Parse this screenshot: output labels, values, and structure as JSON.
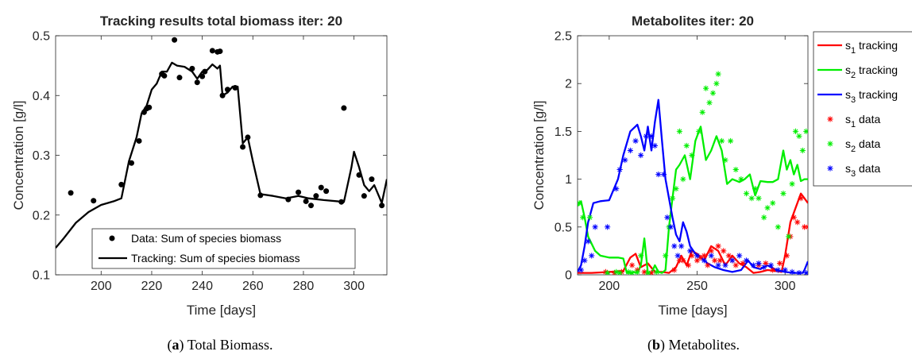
{
  "chart_data": [
    {
      "type": "line",
      "title": "Tracking results total biomass iter: 20",
      "xlabel": "Time [days]",
      "ylabel": "Concentration [g/l]",
      "xlim": [
        182,
        313
      ],
      "ylim": [
        0.1,
        0.5
      ],
      "xticks": [
        200,
        220,
        240,
        260,
        280,
        300
      ],
      "yticks": [
        0.1,
        0.2,
        0.3,
        0.4,
        0.5
      ],
      "xtick_labels": [
        "200",
        "220",
        "240",
        "260",
        "280",
        "300"
      ],
      "ytick_labels": [
        "0.1",
        "0.2",
        "0.3",
        "0.4",
        "0.5"
      ],
      "grid": false,
      "legend": "bottom-center",
      "series": [
        {
          "name": "Data: Sum of species biomass",
          "kind": "scatter",
          "color": "#000000",
          "x": [
            188,
            197,
            208,
            212,
            215,
            217,
            218,
            219,
            224,
            225,
            229,
            231,
            236,
            238,
            240,
            241,
            244,
            246,
            247,
            248,
            250,
            253,
            256,
            258,
            263,
            274,
            278,
            281,
            283,
            285,
            287,
            289,
            295,
            296,
            302,
            304,
            307,
            311
          ],
          "y": [
            0.237,
            0.224,
            0.251,
            0.287,
            0.324,
            0.372,
            0.378,
            0.38,
            0.436,
            0.433,
            0.493,
            0.43,
            0.445,
            0.422,
            0.432,
            0.44,
            0.475,
            0.473,
            0.474,
            0.4,
            0.41,
            0.413,
            0.314,
            0.33,
            0.233,
            0.226,
            0.238,
            0.223,
            0.216,
            0.232,
            0.246,
            0.24,
            0.222,
            0.379,
            0.267,
            0.232,
            0.26,
            0.216
          ]
        },
        {
          "name": "Tracking: Sum of species biomass",
          "kind": "line",
          "color": "#000000",
          "x": [
            182,
            185,
            190,
            195,
            200,
            205,
            208,
            211,
            214,
            216,
            218,
            220,
            222,
            224,
            226,
            228,
            230,
            233,
            236,
            238,
            240,
            242,
            244,
            246,
            247,
            248,
            250,
            252,
            254,
            256,
            258,
            260,
            263,
            268,
            273,
            278,
            282,
            288,
            296,
            299,
            300,
            302,
            304,
            306,
            308,
            310,
            311,
            313
          ],
          "y": [
            0.145,
            0.16,
            0.187,
            0.205,
            0.217,
            0.223,
            0.228,
            0.29,
            0.33,
            0.37,
            0.383,
            0.41,
            0.42,
            0.44,
            0.44,
            0.455,
            0.45,
            0.448,
            0.44,
            0.428,
            0.44,
            0.443,
            0.452,
            0.445,
            0.45,
            0.4,
            0.405,
            0.415,
            0.415,
            0.32,
            0.33,
            0.29,
            0.235,
            0.232,
            0.228,
            0.232,
            0.228,
            0.225,
            0.222,
            0.28,
            0.306,
            0.28,
            0.25,
            0.24,
            0.25,
            0.23,
            0.22,
            0.26
          ]
        }
      ]
    },
    {
      "type": "line",
      "title": "Metabolites iter: 20",
      "xlabel": "Time [days]",
      "ylabel": "Concentration [g/l]",
      "xlim": [
        182,
        313
      ],
      "ylim": [
        0,
        2.5
      ],
      "xticks": [
        200,
        250,
        300
      ],
      "yticks": [
        0,
        0.5,
        1,
        1.5,
        2,
        2.5
      ],
      "xtick_labels": [
        "200",
        "250",
        "300"
      ],
      "ytick_labels": [
        "0",
        "0.5",
        "1",
        "1.5",
        "2",
        "2.5"
      ],
      "grid": false,
      "legend": "top-right",
      "series": [
        {
          "name_main": "s",
          "name_sub": "1",
          "name_suffix": " tracking",
          "kind": "line",
          "color": "#ff0000",
          "x": [
            182,
            190,
            200,
            208,
            212,
            215,
            218,
            222,
            226,
            230,
            234,
            238,
            241,
            244,
            247,
            250,
            254,
            258,
            262,
            266,
            270,
            274,
            278,
            282,
            286,
            290,
            295,
            298,
            300,
            303,
            306,
            309,
            311,
            313
          ],
          "y": [
            0.02,
            0.02,
            0.03,
            0.04,
            0.18,
            0.22,
            0.08,
            0.12,
            0.03,
            0.03,
            0.02,
            0.08,
            0.2,
            0.1,
            0.25,
            0.22,
            0.15,
            0.3,
            0.25,
            0.1,
            0.2,
            0.12,
            0.08,
            0.02,
            0.03,
            0.05,
            0.04,
            0.03,
            0.2,
            0.55,
            0.7,
            0.85,
            0.8,
            0.75
          ]
        },
        {
          "name_main": "s",
          "name_sub": "2",
          "name_suffix": " tracking",
          "kind": "line",
          "color": "#00ee00",
          "x": [
            182,
            184,
            186,
            188,
            192,
            195,
            200,
            205,
            208,
            210,
            212,
            214,
            216,
            218,
            220,
            222,
            224,
            226,
            228,
            230,
            232,
            234,
            236,
            238,
            240,
            243,
            246,
            249,
            252,
            255,
            258,
            261,
            264,
            267,
            270,
            274,
            277,
            280,
            283,
            286,
            290,
            293,
            296,
            299,
            301,
            303,
            305,
            307,
            309,
            311,
            313
          ],
          "y": [
            0.72,
            0.77,
            0.6,
            0.4,
            0.25,
            0.2,
            0.18,
            0.18,
            0.17,
            0.02,
            0.02,
            0.03,
            0.02,
            0.1,
            0.38,
            0.02,
            0.02,
            0.1,
            0.03,
            0.02,
            0.05,
            0.5,
            0.8,
            1.1,
            1.15,
            1.25,
            1.0,
            1.4,
            1.55,
            1.2,
            1.3,
            1.45,
            1.3,
            0.95,
            1.0,
            0.97,
            1.0,
            1.05,
            0.83,
            0.98,
            0.97,
            0.97,
            1.0,
            1.3,
            1.1,
            1.2,
            1.05,
            1.15,
            0.98,
            1.0,
            1.0
          ]
        },
        {
          "name_main": "s",
          "name_sub": "3",
          "name_suffix": " tracking",
          "kind": "line",
          "color": "#0000ff",
          "x": [
            182,
            184,
            186,
            188,
            191,
            195,
            200,
            205,
            208,
            212,
            216,
            218,
            220,
            222,
            224,
            226,
            228,
            230,
            232,
            234,
            236,
            238,
            240,
            242,
            244,
            246,
            249,
            252,
            256,
            260,
            265,
            270,
            275,
            279,
            282,
            286,
            290,
            295,
            300,
            305,
            310,
            311,
            313
          ],
          "y": [
            0.03,
            0.1,
            0.3,
            0.55,
            0.75,
            0.77,
            0.78,
            1.0,
            1.25,
            1.5,
            1.57,
            1.45,
            1.3,
            1.55,
            1.3,
            1.6,
            1.83,
            1.4,
            1.0,
            0.8,
            0.6,
            0.42,
            0.35,
            0.55,
            0.45,
            0.3,
            0.22,
            0.18,
            0.12,
            0.08,
            0.05,
            0.03,
            0.05,
            0.15,
            0.08,
            0.06,
            0.1,
            0.05,
            0.03,
            0.02,
            0.02,
            0.05,
            0.14
          ]
        },
        {
          "name_main": "s",
          "name_sub": "1",
          "name_suffix": " data",
          "kind": "scatter",
          "color": "#ff0000",
          "x": [
            198,
            203,
            207,
            213,
            216,
            220,
            224,
            237,
            240,
            242,
            245,
            247,
            250,
            252,
            254,
            256,
            258,
            260,
            262,
            263,
            265,
            268,
            270,
            272,
            276,
            285,
            289,
            293,
            297,
            301,
            303,
            305,
            307,
            309,
            311,
            313
          ],
          "y": [
            0.03,
            0.02,
            0.03,
            0.1,
            0.05,
            0.03,
            0.02,
            0.05,
            0.15,
            0.15,
            0.1,
            0.2,
            0.15,
            0.18,
            0.2,
            0.1,
            0.25,
            0.15,
            0.3,
            0.15,
            0.25,
            0.2,
            0.15,
            0.1,
            0.12,
            0.1,
            0.12,
            0.05,
            0.12,
            0.2,
            0.4,
            0.6,
            0.55,
            0.8,
            0.5,
            0.5
          ]
        },
        {
          "name_main": "s",
          "name_sub": "2",
          "name_suffix": " data",
          "kind": "scatter",
          "color": "#00ee00",
          "x": [
            183,
            185,
            189,
            199,
            204,
            206,
            211,
            213,
            216,
            218,
            222,
            227,
            232,
            234,
            236,
            238,
            240,
            242,
            244,
            247,
            251,
            253,
            255,
            257,
            259,
            261,
            262,
            264,
            266,
            269,
            272,
            275,
            278,
            281,
            283,
            285,
            288,
            290,
            293,
            296,
            299,
            302,
            304,
            306,
            308,
            310,
            312
          ],
          "y": [
            0.75,
            0.6,
            0.6,
            0.02,
            0.03,
            0.02,
            0.03,
            0.02,
            0.03,
            0.2,
            0.02,
            0.03,
            0.2,
            0.5,
            0.8,
            0.9,
            1.5,
            1.0,
            1.35,
            1.25,
            1.5,
            1.7,
            1.95,
            1.8,
            1.9,
            2.0,
            2.1,
            1.4,
            1.2,
            1.4,
            1.1,
            1.0,
            0.85,
            0.8,
            0.9,
            0.8,
            0.6,
            0.7,
            0.75,
            0.5,
            0.85,
            0.4,
            0.95,
            1.5,
            1.45,
            1.3,
            1.5
          ]
        },
        {
          "name_main": "s",
          "name_sub": "3",
          "name_suffix": " data",
          "kind": "scatter",
          "color": "#0000ff",
          "x": [
            184,
            186,
            188,
            190,
            192,
            199,
            204,
            206,
            209,
            212,
            215,
            218,
            221,
            224,
            226,
            228,
            231,
            233,
            235,
            237,
            239,
            241,
            246,
            250,
            254,
            258,
            262,
            266,
            270,
            274,
            278,
            282,
            285,
            288,
            292,
            296,
            300,
            304,
            308,
            312
          ],
          "y": [
            0.05,
            0.15,
            0.35,
            0.2,
            0.5,
            0.5,
            0.9,
            1.1,
            1.2,
            1.3,
            1.4,
            1.25,
            1.45,
            1.45,
            1.35,
            1.05,
            1.05,
            0.6,
            0.5,
            0.3,
            0.2,
            0.3,
            0.25,
            0.2,
            0.15,
            0.2,
            0.1,
            0.1,
            0.15,
            0.2,
            0.15,
            0.1,
            0.12,
            0.08,
            0.1,
            0.05,
            0.05,
            0.03,
            0.02,
            0.02
          ]
        }
      ]
    }
  ],
  "captions": [
    {
      "label": "a",
      "open": "(",
      "close": ")",
      "text": " Total Biomass."
    },
    {
      "label": "b",
      "open": "(",
      "close": ")",
      "text": " Metabolites."
    }
  ]
}
